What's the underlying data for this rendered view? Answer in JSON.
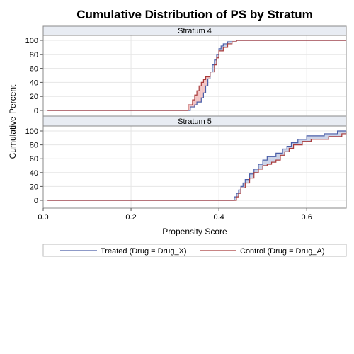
{
  "chart_data": {
    "type": "line",
    "title": "Cumulative Distribution of PS by Stratum",
    "xlabel": "Propensity Score",
    "ylabel": "Cumulative Percent",
    "xlim": [
      0.0,
      0.69
    ],
    "ylim": [
      0,
      100
    ],
    "xticks": [
      "0.0",
      "0.2",
      "0.4",
      "0.6"
    ],
    "yticks": [
      "0",
      "20",
      "40",
      "60",
      "80",
      "100"
    ],
    "grid": true,
    "legend_position": "bottom",
    "colors": {
      "treated": "#4a5ea8",
      "control": "#a83a3a",
      "fill_control_above": "#f2c4c4",
      "fill_treated_above": "#cdd4e8"
    },
    "panels": [
      {
        "label": "Stratum 4",
        "series": [
          {
            "name": "Treated (Drug = Drug_X)",
            "steps": [
              [
                0.01,
                0
              ],
              [
                0.33,
                0
              ],
              [
                0.335,
                5
              ],
              [
                0.345,
                8
              ],
              [
                0.35,
                12
              ],
              [
                0.36,
                18
              ],
              [
                0.365,
                25
              ],
              [
                0.37,
                35
              ],
              [
                0.375,
                45
              ],
              [
                0.38,
                55
              ],
              [
                0.385,
                65
              ],
              [
                0.39,
                72
              ],
              [
                0.395,
                80
              ],
              [
                0.4,
                88
              ],
              [
                0.405,
                92
              ],
              [
                0.41,
                95
              ],
              [
                0.42,
                98
              ],
              [
                0.44,
                100
              ],
              [
                0.69,
                100
              ]
            ]
          },
          {
            "name": "Control (Drug = Drug_A)",
            "steps": [
              [
                0.01,
                0
              ],
              [
                0.325,
                0
              ],
              [
                0.33,
                8
              ],
              [
                0.34,
                15
              ],
              [
                0.345,
                22
              ],
              [
                0.35,
                28
              ],
              [
                0.355,
                35
              ],
              [
                0.36,
                40
              ],
              [
                0.365,
                44
              ],
              [
                0.37,
                48
              ],
              [
                0.38,
                55
              ],
              [
                0.39,
                65
              ],
              [
                0.395,
                75
              ],
              [
                0.4,
                85
              ],
              [
                0.41,
                90
              ],
              [
                0.42,
                95
              ],
              [
                0.43,
                98
              ],
              [
                0.44,
                100
              ],
              [
                0.69,
                100
              ]
            ]
          }
        ]
      },
      {
        "label": "Stratum 5",
        "series": [
          {
            "name": "Treated (Drug = Drug_X)",
            "steps": [
              [
                0.01,
                0
              ],
              [
                0.43,
                0
              ],
              [
                0.435,
                5
              ],
              [
                0.44,
                10
              ],
              [
                0.445,
                15
              ],
              [
                0.45,
                20
              ],
              [
                0.455,
                25
              ],
              [
                0.46,
                30
              ],
              [
                0.47,
                38
              ],
              [
                0.48,
                45
              ],
              [
                0.49,
                52
              ],
              [
                0.5,
                58
              ],
              [
                0.51,
                63
              ],
              [
                0.53,
                68
              ],
              [
                0.545,
                74
              ],
              [
                0.555,
                78
              ],
              [
                0.565,
                83
              ],
              [
                0.58,
                88
              ],
              [
                0.6,
                93
              ],
              [
                0.64,
                96
              ],
              [
                0.67,
                100
              ],
              [
                0.69,
                100
              ]
            ]
          },
          {
            "name": "Control (Drug = Drug_A)",
            "steps": [
              [
                0.01,
                0
              ],
              [
                0.435,
                0
              ],
              [
                0.44,
                5
              ],
              [
                0.445,
                10
              ],
              [
                0.45,
                18
              ],
              [
                0.46,
                25
              ],
              [
                0.47,
                32
              ],
              [
                0.48,
                40
              ],
              [
                0.49,
                45
              ],
              [
                0.5,
                50
              ],
              [
                0.51,
                52
              ],
              [
                0.52,
                55
              ],
              [
                0.53,
                58
              ],
              [
                0.54,
                65
              ],
              [
                0.55,
                70
              ],
              [
                0.56,
                75
              ],
              [
                0.57,
                80
              ],
              [
                0.59,
                85
              ],
              [
                0.61,
                88
              ],
              [
                0.65,
                92
              ],
              [
                0.68,
                96
              ],
              [
                0.69,
                100
              ]
            ]
          }
        ]
      }
    ]
  }
}
